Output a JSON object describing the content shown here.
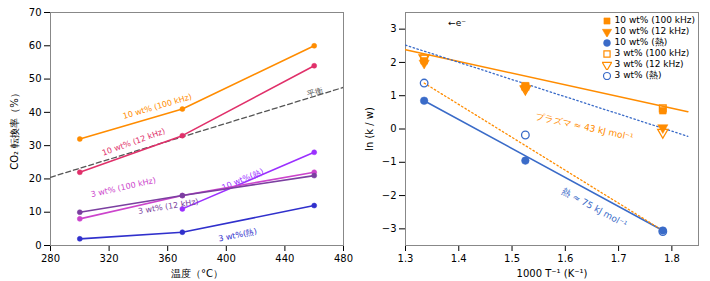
{
  "chart_data": [
    {
      "type": "line",
      "xlabel": "温度（°C）",
      "ylabel": "CO₂ 転換率（%）",
      "xlim": [
        280,
        480
      ],
      "ylim": [
        0,
        70
      ],
      "xticks": [
        280,
        320,
        360,
        400,
        440,
        480
      ],
      "yticks": [
        0,
        10,
        20,
        30,
        40,
        50,
        60,
        70
      ],
      "series": [
        {
          "name": "平衡",
          "color": "#555555",
          "line_style": "dashed",
          "marker": "none",
          "x": [
            280,
            480
          ],
          "values": [
            20.5,
            47.5
          ],
          "label_at": [
            456,
            44.5
          ]
        },
        {
          "name": "10 wt% (100 kHz)",
          "color": "#FF8C00",
          "line_style": "solid",
          "marker": "circle",
          "x": [
            300,
            370,
            460
          ],
          "values": [
            32,
            41,
            60
          ],
          "label_at": [
            330,
            38.0
          ]
        },
        {
          "name": "10 wt% (12 kHz)",
          "color": "#E0306A",
          "line_style": "solid",
          "marker": "circle",
          "x": [
            300,
            370,
            460
          ],
          "values": [
            22,
            33,
            54
          ],
          "label_at": [
            316,
            27.0
          ]
        },
        {
          "name": "10 wt%(熱)",
          "color": "#9B30FF",
          "line_style": "solid",
          "marker": "circle",
          "x": [
            370,
            460
          ],
          "values": [
            11,
            28
          ],
          "label_at": [
            398,
            16.5
          ]
        },
        {
          "name": "3 wt% (100 kHz)",
          "color": "#CC44CC",
          "line_style": "solid",
          "marker": "circle",
          "x": [
            300,
            370,
            460
          ],
          "values": [
            8,
            15,
            22
          ],
          "label_at": [
            308,
            14.5
          ]
        },
        {
          "name": "3 wt% (12 kHz)",
          "color": "#7B3FA0",
          "line_style": "solid",
          "marker": "circle",
          "x": [
            300,
            370,
            460
          ],
          "values": [
            10,
            15,
            21
          ],
          "label_at": [
            340,
            9.5
          ]
        },
        {
          "name": "3 wt%(熱)",
          "color": "#3030CC",
          "line_style": "solid",
          "marker": "circle",
          "x": [
            300,
            370,
            460
          ],
          "values": [
            2,
            4,
            12
          ],
          "label_at": [
            395,
            1.2
          ]
        }
      ]
    },
    {
      "type": "scatter",
      "xlabel": "1000 T⁻¹ (K⁻¹)",
      "ylabel": "ln (k / w)",
      "xlim": [
        1.3,
        1.85
      ],
      "ylim": [
        -3.5,
        3.5
      ],
      "xticks": [
        1.3,
        1.4,
        1.5,
        1.6,
        1.7,
        1.8
      ],
      "yticks": [
        -3,
        -2,
        -1,
        0,
        1,
        2,
        3
      ],
      "legend": "upper right",
      "series": [
        {
          "type": "line",
          "color": "#FF8C00",
          "line_style": "solid",
          "x": [
            1.3,
            1.83
          ],
          "values": [
            2.38,
            0.52
          ]
        },
        {
          "type": "line",
          "color": "#3A6BC8",
          "line_style": "dotted",
          "x": [
            1.3,
            1.83
          ],
          "values": [
            2.52,
            -0.22
          ]
        },
        {
          "type": "line",
          "color": "#3A6BC8",
          "line_style": "solid",
          "x": [
            1.335,
            1.783
          ],
          "values": [
            0.85,
            -3.05
          ]
        },
        {
          "type": "line",
          "color": "#FF8C00",
          "line_style": "dotted",
          "x": [
            1.335,
            1.783
          ],
          "values": [
            1.38,
            -3.05
          ]
        },
        {
          "name": "10 wt% (100 kHz)",
          "color": "#FF8C00",
          "marker": "square",
          "x": [
            1.335,
            1.525,
            1.783
          ],
          "values": [
            2.05,
            1.3,
            0.55
          ]
        },
        {
          "name": "10 wt% (12 kHz)",
          "color": "#FF8C00",
          "marker": "triangle-down",
          "x": [
            1.335,
            1.525,
            1.783
          ],
          "values": [
            1.98,
            1.22,
            0.04
          ]
        },
        {
          "name": "10 wt% (熱)",
          "color": "#3A6BC8",
          "marker": "circle",
          "x": [
            1.335,
            1.525,
            1.783
          ],
          "values": [
            0.85,
            -0.95,
            -3.05
          ]
        },
        {
          "name": "3 wt% (100 kHz)",
          "color": "#FF8C00",
          "marker": "square-open",
          "x": [
            1.335,
            1.525,
            1.783
          ],
          "values": [
            2.12,
            1.28,
            0.62
          ]
        },
        {
          "name": "3 wt% (12 kHz)",
          "color": "#FF8C00",
          "marker": "triangle-down-open",
          "x": [
            1.335,
            1.525,
            1.783
          ],
          "values": [
            2.14,
            1.2,
            -0.1
          ]
        },
        {
          "name": "3 wt% (熱)",
          "color": "#3A6BC8",
          "marker": "circle-open",
          "x": [
            1.335,
            1.525,
            1.783
          ],
          "values": [
            1.38,
            -0.18,
            -3.08
          ]
        }
      ],
      "annotations": [
        {
          "text": "プラズマ ≈ 43 kJ mol⁻¹",
          "x": 1.545,
          "y": 0.38,
          "color": "#FF8C00"
        },
        {
          "text": "熱 ≈ 75 kJ mol⁻¹",
          "x": 1.595,
          "y": -1.85,
          "color": "#3A6BC8"
        },
        {
          "text": "←e⁻",
          "x": 1.38,
          "y": 3.18,
          "color": "#000000"
        }
      ]
    }
  ]
}
